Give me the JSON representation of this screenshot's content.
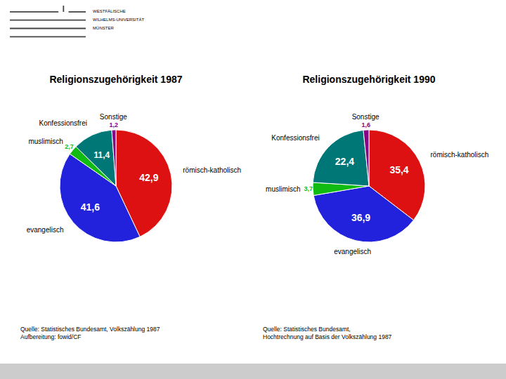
{
  "chart_data": [
    {
      "type": "pie",
      "title": "Religionszugehörigkeit 1987",
      "categories": [
        "römisch-katholisch",
        "evangelisch",
        "muslimisch",
        "Konfessionsfrei",
        "Sonstige"
      ],
      "values": [
        42.9,
        41.6,
        2.7,
        11.4,
        1.2
      ],
      "value_labels": [
        "42,9",
        "41,6",
        "2,7",
        "11,4",
        "1,2"
      ],
      "colors": [
        "#dd1111",
        "#2222dd",
        "#11bb11",
        "#007777",
        "#880088"
      ],
      "data_labels": true,
      "annotations": [
        "Quelle: Statistisches Bundesamt, Volkszählung 1987",
        "Aufbereitung: fowid/CF"
      ]
    },
    {
      "type": "pie",
      "title": "Religionszugehörigkeit 1990",
      "categories": [
        "römisch-katholisch",
        "evangelisch",
        "muslimisch",
        "Konfessionsfrei",
        "Sonstige"
      ],
      "values": [
        35.4,
        36.9,
        3.7,
        22.4,
        1.6
      ],
      "value_labels": [
        "35,4",
        "36,9",
        "3,7",
        "22,4",
        "1,6"
      ],
      "colors": [
        "#dd1111",
        "#2222dd",
        "#11bb11",
        "#007777",
        "#880088"
      ],
      "data_labels": true,
      "annotations": [
        "Quelle: Statistisches Bundesamt,",
        "Hochtrechnung auf Basis der Volkszählung 1987"
      ]
    }
  ],
  "annotations": [
    "WESTFÄLISCHE",
    "WILHELMS-UNIVERSITÄT",
    "MÜNSTER"
  ]
}
